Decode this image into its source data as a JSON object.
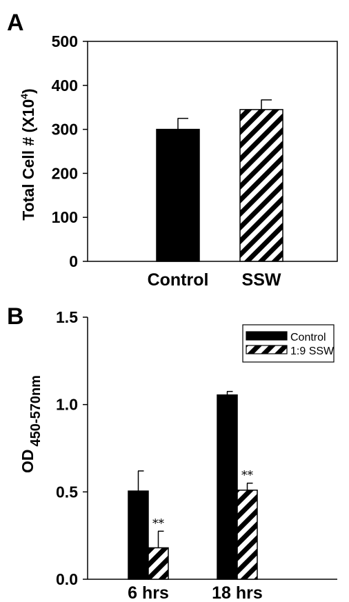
{
  "chart_data": [
    {
      "panel": "A",
      "type": "bar",
      "ylabel": "Total Cell # (X10",
      "ylabel_sup": "4",
      "ylabel_end": ")",
      "ylim": [
        0,
        500
      ],
      "yticks": [
        "0",
        "100",
        "200",
        "300",
        "400",
        "500"
      ],
      "categories": [
        "Control",
        "SSW"
      ],
      "values": [
        300,
        345
      ],
      "errors": [
        25,
        22
      ],
      "fills": [
        "solid",
        "hatched"
      ],
      "grid": false
    },
    {
      "panel": "B",
      "type": "bar",
      "ylabel": "OD",
      "ylabel_sub": "450-570nm",
      "ylim": [
        0,
        1.5
      ],
      "yticks": [
        "0.0",
        "0.5",
        "1.0",
        "1.5"
      ],
      "categories": [
        "6 hrs",
        "18 hrs"
      ],
      "series": [
        {
          "name": "Control",
          "values": [
            0.505,
            1.055
          ],
          "errors": [
            0.115,
            0.02
          ],
          "fill": "solid",
          "annotations": [
            "",
            ""
          ]
        },
        {
          "name": "1:9 SSW",
          "values": [
            0.18,
            0.51
          ],
          "errors": [
            0.095,
            0.04
          ],
          "fill": "hatched",
          "annotations": [
            "**",
            "**"
          ]
        }
      ],
      "legend_position": "top-right",
      "grid": false
    }
  ]
}
